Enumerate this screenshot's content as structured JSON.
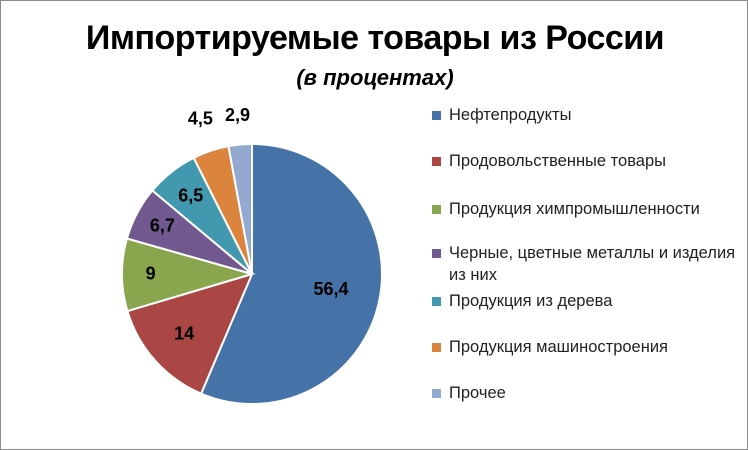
{
  "chart_data": {
    "type": "pie",
    "title": "Импортируемые товары из России",
    "subtitle": "(в процентах)",
    "legend_position": "right",
    "slices": [
      {
        "label": "Нефтепродукты",
        "value": 56.4,
        "value_label": "56,4",
        "color": "#4572A7"
      },
      {
        "label": "Продовольственные товары",
        "value": 14,
        "value_label": "14",
        "color": "#AA4643"
      },
      {
        "label": "Продукция химпромышленности",
        "value": 9,
        "value_label": "9",
        "color": "#89A54E"
      },
      {
        "label": "Черные, цветные металлы и изделия из них",
        "value": 6.7,
        "value_label": "6,7",
        "color": "#71588F"
      },
      {
        "label": "Продукция из дерева",
        "value": 6.5,
        "value_label": "6,5",
        "color": "#4198AF"
      },
      {
        "label": "Продукция машиностроения",
        "value": 4.5,
        "value_label": "4,5",
        "color": "#DB843D"
      },
      {
        "label": "Прочее",
        "value": 2.9,
        "value_label": "2,9",
        "color": "#93A9CF"
      }
    ]
  }
}
